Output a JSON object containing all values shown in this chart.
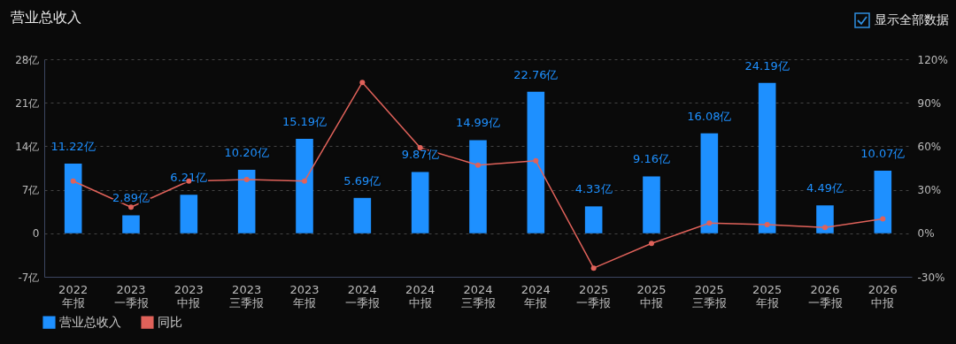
{
  "chart_data": {
    "type": "bar",
    "title": "营业总收入",
    "categories": [
      "2022\n年报",
      "2023\n一季报",
      "2023\n中报",
      "2023\n三季报",
      "2023\n年报",
      "2024\n一季报",
      "2024\n中报",
      "2024\n三季报",
      "2024\n年报",
      "2025\n一季报",
      "2025\n中报",
      "2025\n三季报",
      "2025\n年报",
      "2026\n一季报",
      "2026\n中报"
    ],
    "series": [
      {
        "name": "营业总收入",
        "type": "bar",
        "color": "#1e90ff",
        "values": [
          11.22,
          2.89,
          6.21,
          10.2,
          15.19,
          5.69,
          9.87,
          14.99,
          22.76,
          4.33,
          9.16,
          16.08,
          24.19,
          4.49,
          10.07
        ],
        "value_labels": [
          "11.22亿",
          "2.89亿",
          "6.21亿",
          "10.20亿",
          "15.19亿",
          "5.69亿",
          "9.87亿",
          "14.99亿",
          "22.76亿",
          "4.33亿",
          "9.16亿",
          "16.08亿",
          "24.19亿",
          "4.49亿",
          "10.07亿"
        ]
      },
      {
        "name": "同比",
        "type": "line",
        "axis": "y2",
        "color": "#e0625a",
        "marker": "circle",
        "values": [
          36,
          18,
          36,
          37,
          36,
          104,
          59,
          47,
          50,
          -24,
          -7,
          7,
          6,
          4,
          10
        ]
      }
    ],
    "ylim": [
      -7,
      28
    ],
    "yticks": [
      {
        "value": -7,
        "label": "-7亿"
      },
      0,
      {
        "value": 7,
        "label": "7亿"
      },
      {
        "value": 14,
        "label": "14亿"
      },
      {
        "value": 21,
        "label": "21亿"
      },
      {
        "value": 28,
        "label": "28亿"
      }
    ],
    "y2lim": [
      -30,
      120
    ],
    "y2ticks": [
      {
        "value": -30,
        "label": "-30%"
      },
      {
        "value": 0,
        "label": "0%"
      },
      {
        "value": 30,
        "label": "30%"
      },
      {
        "value": 60,
        "label": "60%"
      },
      {
        "value": 90,
        "label": "90%"
      },
      {
        "value": 120,
        "label": "120%"
      }
    ],
    "grid": "y",
    "legend": "bottom left",
    "annotations": [
      "显示全部数据"
    ]
  }
}
